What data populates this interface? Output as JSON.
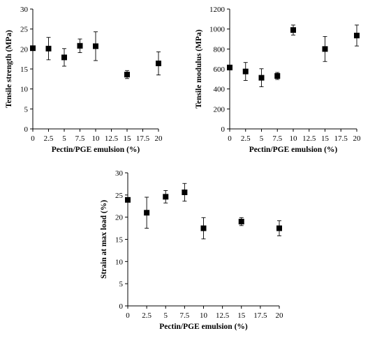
{
  "chart_data": [
    {
      "type": "scatter",
      "title": "",
      "xlabel": "Pectin/PGE emulsion (%)",
      "ylabel": "Tensile strength  (MPa)",
      "xlim": [
        0,
        20
      ],
      "ylim": [
        0,
        30
      ],
      "xticks": [
        "0",
        "2.5",
        "5",
        "7.5",
        "10",
        "12.5",
        "15",
        "17.5",
        "20"
      ],
      "yticks": [
        "0",
        "5",
        "10",
        "15",
        "20",
        "25",
        "30"
      ],
      "grid": false,
      "series": [
        {
          "x": [
            0,
            2.5,
            5,
            7.5,
            10,
            15,
            20
          ],
          "y": [
            20.2,
            20.1,
            17.9,
            20.8,
            20.7,
            13.6,
            16.4
          ],
          "err": [
            0.0,
            2.8,
            2.2,
            1.7,
            3.6,
            1.0,
            2.9
          ]
        }
      ]
    },
    {
      "type": "scatter",
      "title": "",
      "xlabel": "Pectin/PGE emulsion (%)",
      "ylabel": "Tensile modulus (MPa)",
      "xlim": [
        0,
        20
      ],
      "ylim": [
        0,
        1200
      ],
      "xticks": [
        "0",
        "2.5",
        "5",
        "7.5",
        "10",
        "12.5",
        "15",
        "17.5",
        "20"
      ],
      "yticks": [
        "0",
        "200",
        "400",
        "600",
        "800",
        "1000",
        "1200"
      ],
      "grid": false,
      "series": [
        {
          "x": [
            0,
            2.5,
            5,
            7.5,
            10,
            15,
            20
          ],
          "y": [
            615,
            575,
            512,
            530,
            990,
            800,
            935
          ],
          "err": [
            0,
            90,
            90,
            35,
            50,
            125,
            105
          ]
        }
      ]
    },
    {
      "type": "scatter",
      "title": "",
      "xlabel": "Pectin/PGE emulsion (%)",
      "ylabel": "Strain at max load (%)",
      "xlim": [
        0,
        20
      ],
      "ylim": [
        0,
        30
      ],
      "xticks": [
        "0",
        "2.5",
        "5",
        "7.5",
        "10",
        "12.5",
        "15",
        "17.5",
        "20"
      ],
      "yticks": [
        "0",
        "5",
        "10",
        "15",
        "20",
        "25",
        "30"
      ],
      "grid": false,
      "series": [
        {
          "x": [
            0,
            2.5,
            5,
            7.5,
            10,
            15,
            20
          ],
          "y": [
            23.9,
            21.0,
            24.6,
            25.6,
            17.5,
            19.0,
            17.5
          ],
          "err": [
            0.0,
            3.5,
            1.4,
            2.0,
            2.4,
            0.9,
            1.7
          ]
        }
      ]
    }
  ]
}
